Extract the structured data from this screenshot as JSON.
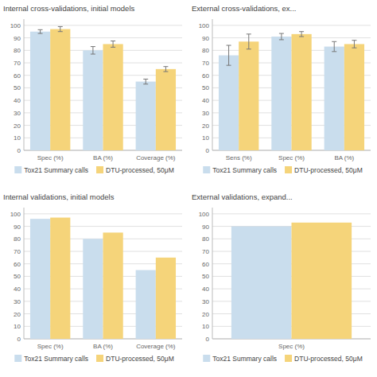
{
  "chart_data": [
    {
      "type": "bar",
      "title": "Internal cross-validations, initial models",
      "categories": [
        "Spec (%)",
        "BA (%)",
        "Coverage (%)"
      ],
      "series": [
        {
          "name": "Tox21 Summary calls",
          "color": "#c9dded",
          "values": [
            95,
            80,
            55
          ],
          "errors": [
            1.5,
            3,
            2
          ]
        },
        {
          "name": "DTU-processed, 50μM",
          "color": "#f5d47a",
          "values": [
            97,
            85,
            65
          ],
          "errors": [
            2,
            2.5,
            2
          ]
        }
      ],
      "ylim": [
        0,
        105
      ],
      "yticks": [
        0,
        10,
        20,
        30,
        40,
        50,
        60,
        70,
        80,
        90,
        100
      ],
      "grid": true,
      "legend": "bottom"
    },
    {
      "type": "bar",
      "title": "External cross-validations, ex...",
      "categories": [
        "Sens (%)",
        "Spec (%)",
        "BA (%)"
      ],
      "series": [
        {
          "name": "Tox21 Summary calls",
          "color": "#c9dded",
          "values": [
            76,
            91,
            83
          ],
          "errors": [
            8,
            2.5,
            4
          ]
        },
        {
          "name": "DTU-processed, 50μM",
          "color": "#f5d47a",
          "values": [
            87,
            93,
            85
          ],
          "errors": [
            6,
            2,
            3
          ]
        }
      ],
      "ylim": [
        0,
        105
      ],
      "yticks": [
        0,
        10,
        20,
        30,
        40,
        50,
        60,
        70,
        80,
        90,
        100
      ],
      "grid": true,
      "legend": "bottom"
    },
    {
      "type": "bar",
      "title": "Internal validations, initial models",
      "categories": [
        "Spec (%)",
        "BA (%)",
        "Coverage (%)"
      ],
      "series": [
        {
          "name": "Tox21 Summary calls",
          "color": "#c9dded",
          "values": [
            96,
            80,
            55
          ]
        },
        {
          "name": "DTU-processed, 50μM",
          "color": "#f5d47a",
          "values": [
            97,
            85,
            65
          ]
        }
      ],
      "ylim": [
        0,
        105
      ],
      "yticks": [
        0,
        10,
        20,
        30,
        40,
        50,
        60,
        70,
        80,
        90,
        100
      ],
      "grid": true,
      "legend": "bottom"
    },
    {
      "type": "bar",
      "title": "External validations, expand...",
      "categories": [
        "Spec (%)"
      ],
      "series": [
        {
          "name": "Tox21 Summary calls",
          "color": "#c9dded",
          "values": [
            90
          ]
        },
        {
          "name": "DTU-processed, 50μM",
          "color": "#f5d47a",
          "values": [
            93
          ]
        }
      ],
      "ylim": [
        0,
        105
      ],
      "yticks": [
        0,
        10,
        20,
        30,
        40,
        50,
        60,
        70,
        80,
        90,
        100
      ],
      "grid": true,
      "legend": "bottom"
    }
  ]
}
